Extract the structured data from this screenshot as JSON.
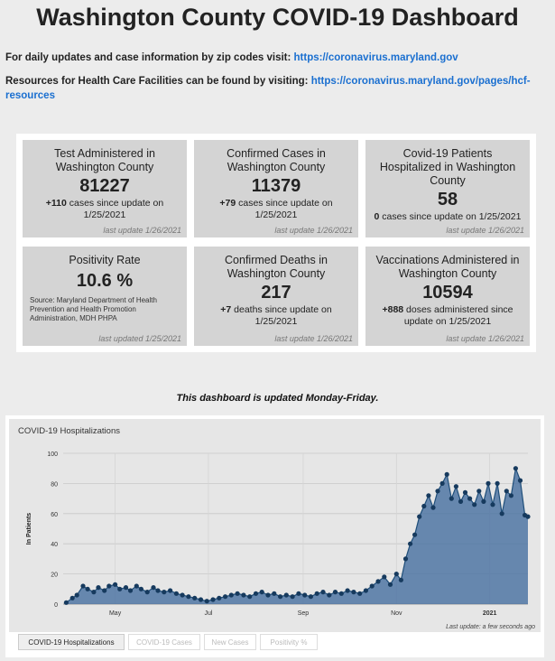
{
  "header": {
    "title": "Washington County COVID-19 Dashboard"
  },
  "info": {
    "daily_text": "For daily updates and case information by zip codes visit: ",
    "daily_link": "https://coronavirus.maryland.gov",
    "hcf_text": "Resources for Health Care Facilities can be found by visiting: ",
    "hcf_link": "https://coronavirus.maryland.gov/pages/hcf-resources"
  },
  "cards": [
    {
      "title": "Test Administered in Washington County",
      "value": "81227",
      "delta": "+110",
      "desc": " cases since update on 1/25/2021",
      "last": "last update 1/26/2021"
    },
    {
      "title": "Confirmed Cases in Washington County",
      "value": "11379",
      "delta": "+79",
      "desc": " cases since update on 1/25/2021",
      "last": "last update 1/26/2021"
    },
    {
      "title": "Covid-19 Patients Hospitalized in Washington County",
      "value": "58",
      "delta": "0",
      "desc": " cases since update on 1/25/2021",
      "last": "last update 1/26/2021"
    },
    {
      "title": "Positivity Rate",
      "value": "10.6 %",
      "source": "Source: Maryland Department of Health Prevention and Health Promotion Administration, MDH PHPA",
      "last": "last updated 1/25/2021"
    },
    {
      "title": "Confirmed Deaths in Washington County",
      "value": "217",
      "delta": "+7",
      "desc": " deaths since update on 1/25/2021",
      "last": "last update 1/26/2021"
    },
    {
      "title": "Vaccinations Administered in Washington County",
      "value": "10594",
      "delta": "+888",
      "desc": " doses administered since update on 1/25/2021",
      "last": "last update 1/26/2021"
    }
  ],
  "notice": "This dashboard is updated Monday-Friday.",
  "chart_panel": {
    "title": "COVID-19 Hospitalizations",
    "last_update": "Last update: a few seconds ago",
    "tabs": [
      "COVID-19 Hospitalizations",
      "COVID-19 Cases",
      "New Cases",
      "Positivity %"
    ]
  },
  "chart_data": {
    "type": "area",
    "ylabel": "In Patients",
    "ylim": [
      0,
      100
    ],
    "yticks": [
      0,
      20,
      40,
      60,
      80,
      100
    ],
    "xlim": [
      "2020-03-28",
      "2021-01-26"
    ],
    "xticks": [
      {
        "date": "2020-05-01",
        "label": "May"
      },
      {
        "date": "2020-07-01",
        "label": "Jul"
      },
      {
        "date": "2020-09-01",
        "label": "Sep"
      },
      {
        "date": "2020-11-01",
        "label": "Nov"
      },
      {
        "date": "2021-01-01",
        "label": "2021"
      }
    ],
    "grid": true,
    "color": "#1f4e79",
    "series": [
      {
        "x": [
          "2020-03-30",
          "2020-04-03",
          "2020-04-06",
          "2020-04-10",
          "2020-04-13",
          "2020-04-17",
          "2020-04-20",
          "2020-04-24",
          "2020-04-27",
          "2020-05-01",
          "2020-05-04",
          "2020-05-08",
          "2020-05-11",
          "2020-05-15",
          "2020-05-18",
          "2020-05-22",
          "2020-05-26",
          "2020-05-29",
          "2020-06-02",
          "2020-06-06",
          "2020-06-10",
          "2020-06-14",
          "2020-06-18",
          "2020-06-22",
          "2020-06-26",
          "2020-06-30",
          "2020-07-04",
          "2020-07-08",
          "2020-07-12",
          "2020-07-16",
          "2020-07-20",
          "2020-07-24",
          "2020-07-28",
          "2020-08-01",
          "2020-08-05",
          "2020-08-09",
          "2020-08-13",
          "2020-08-17",
          "2020-08-21",
          "2020-08-25",
          "2020-08-29",
          "2020-09-02",
          "2020-09-06",
          "2020-09-10",
          "2020-09-14",
          "2020-09-18",
          "2020-09-22",
          "2020-09-26",
          "2020-09-30",
          "2020-10-04",
          "2020-10-08",
          "2020-10-12",
          "2020-10-16",
          "2020-10-20",
          "2020-10-24",
          "2020-10-28",
          "2020-11-01",
          "2020-11-04",
          "2020-11-07",
          "2020-11-10",
          "2020-11-13",
          "2020-11-16",
          "2020-11-19",
          "2020-11-22",
          "2020-11-25",
          "2020-11-28",
          "2020-12-01",
          "2020-12-04",
          "2020-12-07",
          "2020-12-10",
          "2020-12-13",
          "2020-12-16",
          "2020-12-19",
          "2020-12-22",
          "2020-12-25",
          "2020-12-28",
          "2020-12-31",
          "2021-01-03",
          "2021-01-06",
          "2021-01-09",
          "2021-01-12",
          "2021-01-15",
          "2021-01-18",
          "2021-01-21",
          "2021-01-24",
          "2021-01-26"
        ],
        "values": [
          1,
          4,
          6,
          12,
          10,
          8,
          11,
          9,
          12,
          13,
          10,
          11,
          9,
          12,
          10,
          8,
          11,
          9,
          8,
          9,
          7,
          6,
          5,
          4,
          3,
          2,
          3,
          4,
          5,
          6,
          7,
          6,
          5,
          7,
          8,
          6,
          7,
          5,
          6,
          5,
          7,
          6,
          5,
          7,
          8,
          6,
          8,
          7,
          9,
          8,
          7,
          9,
          12,
          15,
          18,
          13,
          20,
          16,
          30,
          40,
          46,
          58,
          65,
          72,
          64,
          75,
          80,
          86,
          70,
          78,
          68,
          74,
          70,
          66,
          75,
          68,
          80,
          66,
          80,
          60,
          75,
          72,
          90,
          82,
          59,
          58
        ]
      }
    ]
  }
}
